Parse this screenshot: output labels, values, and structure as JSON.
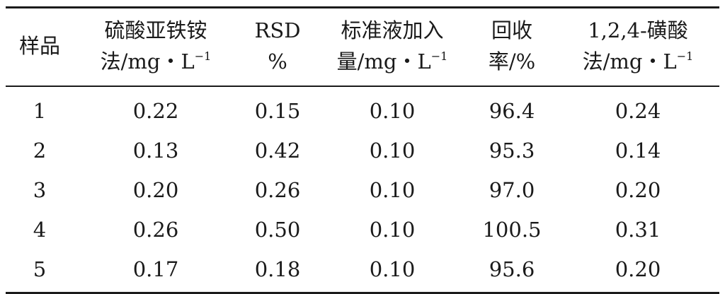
{
  "table": {
    "headers": [
      {
        "lines": [
          "样品"
        ]
      },
      {
        "lines": [
          "硫酸亚铁铵",
          "法/mg・L"
        ],
        "sup": "−1"
      },
      {
        "lines": [
          "RSD",
          "%"
        ]
      },
      {
        "lines": [
          "标准液加入",
          "量/mg・L"
        ],
        "sup": "−1"
      },
      {
        "lines": [
          "回收",
          "率/%"
        ]
      },
      {
        "lines": [
          "1,2,4-磺酸",
          "法/mg・L"
        ],
        "sup": "−1"
      }
    ],
    "rows": [
      [
        "1",
        "0.22",
        "0.15",
        "0.10",
        "96.4",
        "0.24"
      ],
      [
        "2",
        "0.13",
        "0.42",
        "0.10",
        "95.3",
        "0.14"
      ],
      [
        "3",
        "0.20",
        "0.26",
        "0.10",
        "97.0",
        "0.20"
      ],
      [
        "4",
        "0.26",
        "0.50",
        "0.10",
        "100.5",
        "0.31"
      ],
      [
        "5",
        "0.17",
        "0.18",
        "0.10",
        "95.6",
        "0.20"
      ]
    ]
  }
}
